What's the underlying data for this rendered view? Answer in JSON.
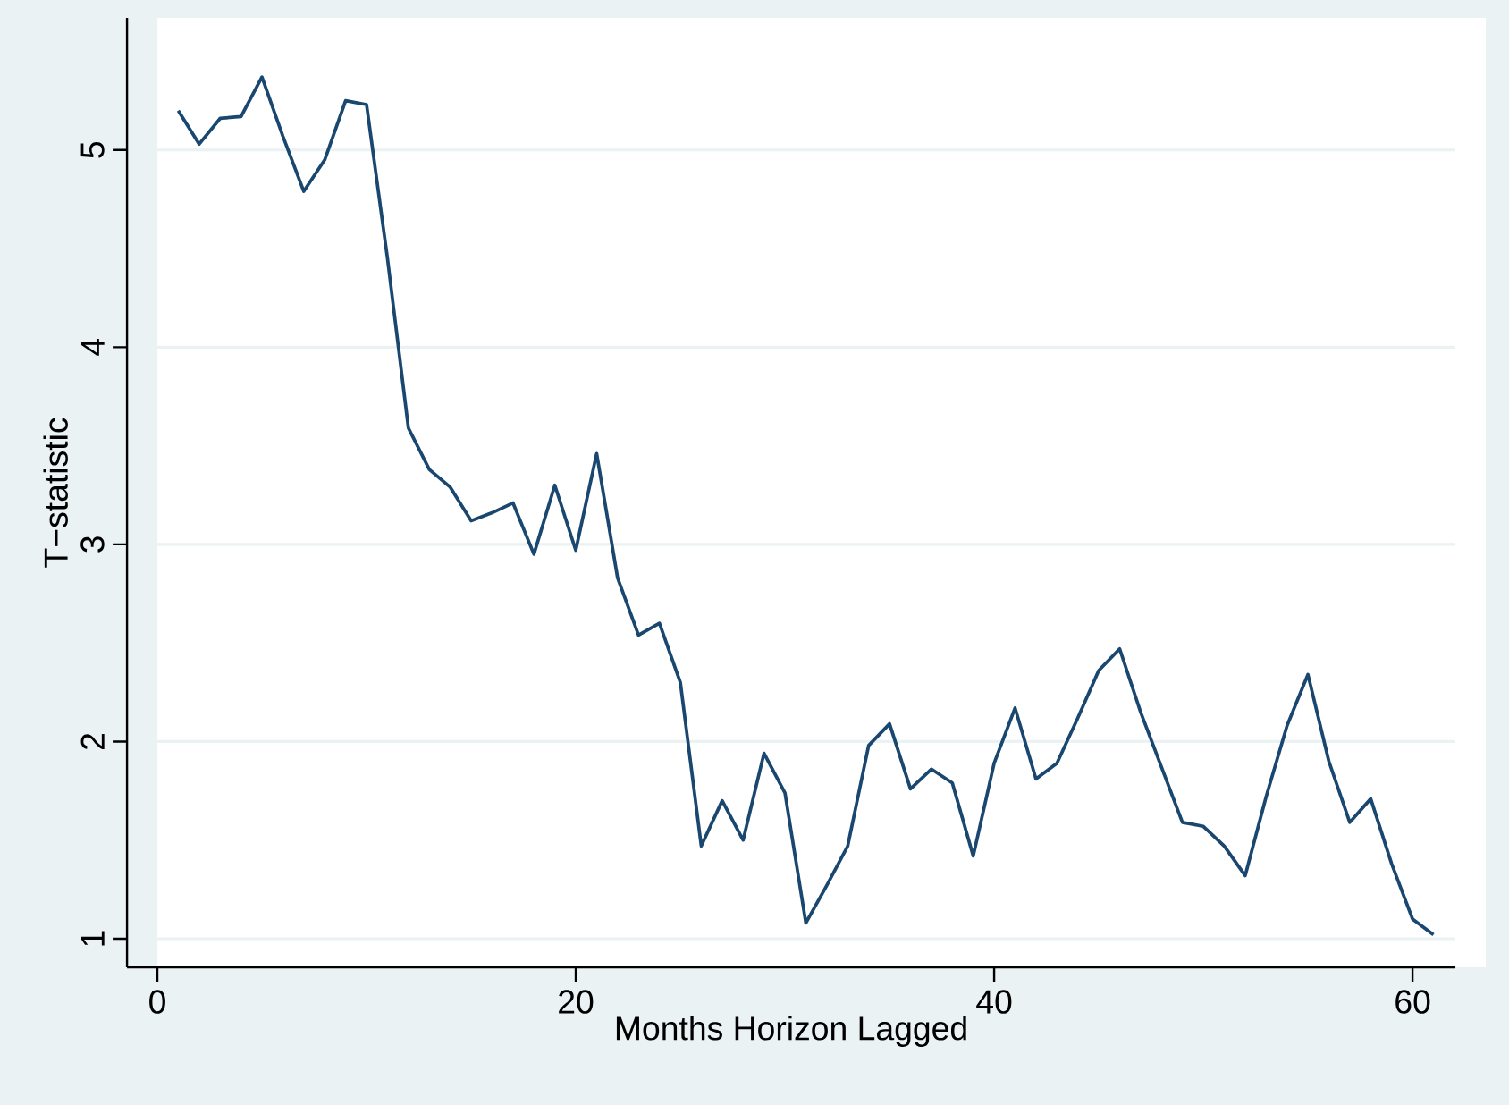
{
  "chart_data": {
    "type": "line",
    "xlabel": "Months Horizon Lagged",
    "ylabel": "T−statistic",
    "series": [
      {
        "color": "#1a476f",
        "x": [
          1,
          2,
          3,
          4,
          5,
          6,
          7,
          8,
          9,
          10,
          11,
          12,
          13,
          14,
          15,
          16,
          17,
          18,
          19,
          20,
          21,
          22,
          23,
          24,
          25,
          26,
          27,
          28,
          29,
          30,
          31,
          32,
          33,
          34,
          35,
          36,
          37,
          38,
          39,
          40,
          41,
          42,
          43,
          44,
          45,
          46,
          47,
          48,
          49,
          50,
          51,
          52,
          53,
          54,
          55,
          56,
          57,
          58,
          59,
          60,
          61
        ],
        "values": [
          5.2,
          5.03,
          5.16,
          5.17,
          5.37,
          5.07,
          4.79,
          4.95,
          5.25,
          5.23,
          4.45,
          3.59,
          3.38,
          3.29,
          3.12,
          3.16,
          3.21,
          2.95,
          3.3,
          2.97,
          3.46,
          2.83,
          2.54,
          2.6,
          2.3,
          1.47,
          1.7,
          1.5,
          1.94,
          1.74,
          1.08,
          1.27,
          1.47,
          1.98,
          2.09,
          1.76,
          1.86,
          1.79,
          1.42,
          1.89,
          2.17,
          1.81,
          1.89,
          2.12,
          2.36,
          2.47,
          2.15,
          1.87,
          1.59,
          1.57,
          1.47,
          1.32,
          1.72,
          2.08,
          2.34,
          1.9,
          1.59,
          1.71,
          1.38,
          1.1,
          1.02
        ]
      }
    ],
    "xlim": [
      -1.45,
      62.05
    ],
    "ylim": [
      0.855,
      5.67
    ],
    "xticks": [
      0,
      20,
      40,
      60
    ],
    "yticks": [
      1,
      2,
      3,
      4,
      5
    ],
    "grid": "y",
    "marker": "none",
    "line_style": "solid"
  }
}
